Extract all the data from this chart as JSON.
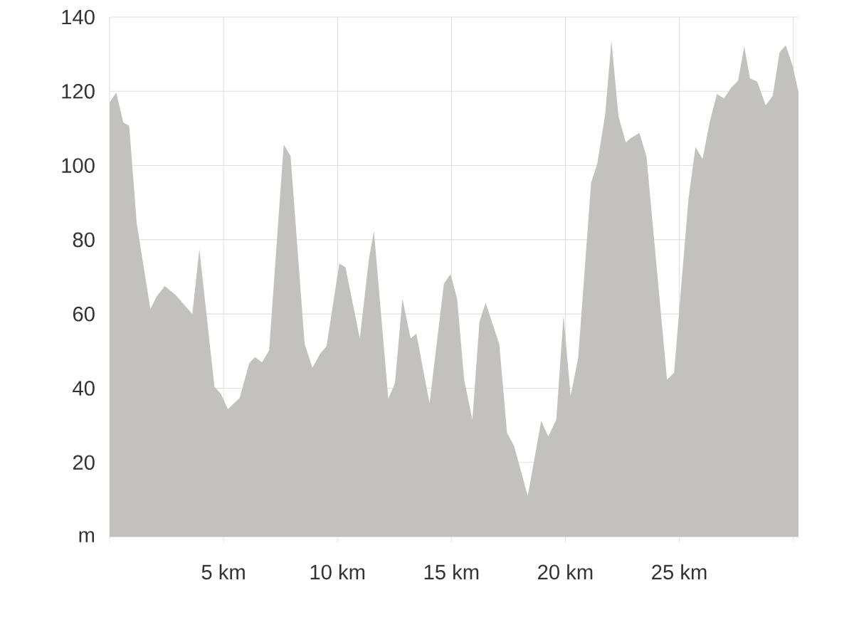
{
  "chart_data": {
    "type": "area",
    "color": "#c2c1bd",
    "grid": true,
    "xlim": [
      0,
      30.23
    ],
    "ylim": [
      0,
      140
    ],
    "xticks": [
      {
        "value": 0,
        "label": null
      },
      {
        "value": 5,
        "label": "5 km"
      },
      {
        "value": 10,
        "label": "10 km"
      },
      {
        "value": 15,
        "label": "15 km"
      },
      {
        "value": 20,
        "label": "20 km"
      },
      {
        "value": 25,
        "label": "25 km"
      },
      {
        "value": 30,
        "label": null
      }
    ],
    "yticks": [
      {
        "value": 0,
        "label": "m"
      },
      20,
      40,
      60,
      80,
      100,
      120,
      140
    ],
    "x": [
      0,
      0.29,
      0.6,
      0.86,
      1.19,
      1.79,
      2.06,
      2.42,
      2.9,
      3.63,
      3.94,
      4.6,
      4.88,
      5.19,
      5.71,
      6.13,
      6.38,
      6.69,
      7.0,
      7.64,
      7.94,
      8.56,
      8.9,
      9.25,
      9.52,
      10.08,
      10.35,
      10.98,
      11.38,
      11.6,
      12.23,
      12.52,
      12.85,
      13.21,
      13.46,
      14.04,
      14.67,
      14.96,
      15.25,
      15.56,
      15.92,
      16.23,
      16.5,
      17.1,
      17.44,
      17.75,
      18.35,
      18.94,
      19.25,
      19.6,
      19.92,
      20.23,
      20.56,
      21.13,
      21.4,
      21.75,
      22.02,
      22.33,
      22.65,
      22.85,
      23.25,
      23.56,
      24.46,
      24.77,
      25.4,
      25.71,
      26.02,
      26.33,
      26.65,
      26.96,
      27.27,
      27.58,
      27.85,
      28.1,
      28.42,
      28.79,
      29.1,
      29.4,
      29.67,
      29.98,
      30.23
    ],
    "values": [
      117,
      119.7,
      111.6,
      110.7,
      84.5,
      61.3,
      64.7,
      67.5,
      65.1,
      60,
      77.5,
      40.4,
      38.5,
      34.4,
      37.4,
      46.8,
      48.4,
      47,
      50.2,
      105.6,
      102.6,
      51.9,
      45.5,
      49.4,
      51.3,
      73.6,
      72.6,
      53.4,
      74.9,
      82.3,
      37.2,
      41.3,
      64.1,
      53.4,
      54.7,
      35.9,
      68.2,
      70.7,
      64.1,
      42.3,
      31.5,
      57.9,
      63,
      51.9,
      28,
      24.4,
      11,
      31.2,
      27,
      31.5,
      59.6,
      37.9,
      48.1,
      95.4,
      100.5,
      113.9,
      133.7,
      113.3,
      106.2,
      107.3,
      108.8,
      102.4,
      42.3,
      44.2,
      90.9,
      105,
      101.8,
      111.6,
      119.3,
      118.1,
      120.9,
      122.9,
      132.1,
      123.5,
      122.6,
      116.2,
      118.8,
      130.5,
      132.4,
      126.7,
      119.7
    ]
  }
}
